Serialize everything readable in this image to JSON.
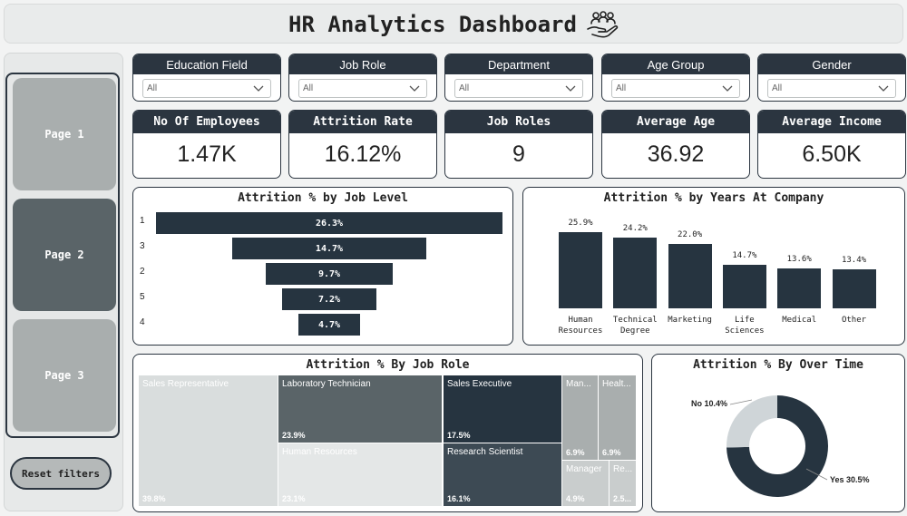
{
  "header": {
    "title": "HR Analytics Dashboard",
    "icon": "team-hand-icon"
  },
  "nav": {
    "pages": [
      "Page 1",
      "Page 2",
      "Page 3"
    ],
    "reset_label": "Reset filters"
  },
  "filters": [
    {
      "label": "Education Field",
      "value": "All"
    },
    {
      "label": "Job Role",
      "value": "All"
    },
    {
      "label": "Department",
      "value": "All"
    },
    {
      "label": "Age Group",
      "value": "All"
    },
    {
      "label": "Gender",
      "value": "All"
    }
  ],
  "kpis": [
    {
      "label": "No Of Employees",
      "value": "1.47K"
    },
    {
      "label": "Attrition Rate",
      "value": "16.12%"
    },
    {
      "label": "Job Roles",
      "value": "9"
    },
    {
      "label": "Average Age",
      "value": "36.92"
    },
    {
      "label": "Average Income",
      "value": "6.50K"
    }
  ],
  "colors": {
    "dark": "#263440",
    "mid": "#5a6468",
    "light": "#d9dddd",
    "donut_light": "#cfd5d8"
  },
  "chart_data": [
    {
      "type": "bar",
      "orientation": "horizontal-funnel",
      "title": "Attrition % by Job Level",
      "categories": [
        "1",
        "3",
        "2",
        "5",
        "4"
      ],
      "values": [
        26.3,
        14.7,
        9.7,
        7.2,
        4.7
      ],
      "labels": [
        "26.3%",
        "14.7%",
        "9.7%",
        "7.2%",
        "4.7%"
      ]
    },
    {
      "type": "bar",
      "title": "Attrition % by Years At Company",
      "categories": [
        [
          "Human",
          "Resources"
        ],
        [
          "Technical",
          "Degree"
        ],
        [
          "Marketing"
        ],
        [
          "Life",
          "Sciences"
        ],
        [
          "Medical"
        ],
        [
          "Other"
        ]
      ],
      "values": [
        25.9,
        24.2,
        22.0,
        14.7,
        13.6,
        13.4
      ],
      "labels": [
        "25.9%",
        "24.2%",
        "22.0%",
        "14.7%",
        "13.6%",
        "13.4%"
      ]
    },
    {
      "type": "treemap",
      "title": "Attrition % By Job Role",
      "items": [
        {
          "name": "Sales Representative",
          "value": 39.8,
          "label": "39.8%"
        },
        {
          "name": "Laboratory Technician",
          "value": 23.9,
          "label": "23.9%"
        },
        {
          "name": "Human Resources",
          "value": 23.1,
          "label": "23.1%"
        },
        {
          "name": "Sales Executive",
          "value": 17.5,
          "label": "17.5%"
        },
        {
          "name": "Research Scientist",
          "value": 16.1,
          "label": "16.1%"
        },
        {
          "name": "Man...",
          "value": 6.9,
          "label": "6.9%"
        },
        {
          "name": "Healt...",
          "value": 6.9,
          "label": "6.9%"
        },
        {
          "name": "Manager",
          "value": 4.9,
          "label": "4.9%"
        },
        {
          "name": "Re...",
          "value": 2.5,
          "label": "2.5..."
        }
      ]
    },
    {
      "type": "pie",
      "variant": "donut",
      "title": "Attrition % By Over Time",
      "slices": [
        {
          "name": "Yes",
          "value": 30.5,
          "label": "Yes 30.5%"
        },
        {
          "name": "No",
          "value": 10.4,
          "label": "No 10.4%"
        }
      ]
    }
  ]
}
